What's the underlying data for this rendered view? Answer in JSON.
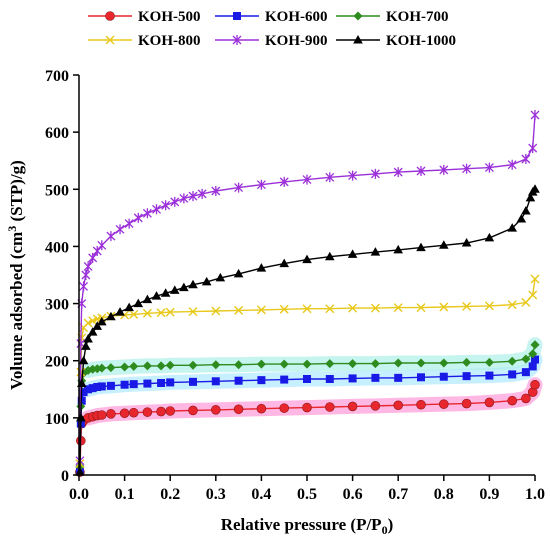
{
  "chart_data": {
    "type": "line",
    "xlabel": "Relative pressure (P/P",
    "xlabel_sub": "0",
    "xlabel_close": ")",
    "ylabel_prefix": "Volume adsorbed (cm",
    "ylabel_sup": "3",
    "ylabel_suffix": " (STP)/g)",
    "xlim": [
      0,
      1.0
    ],
    "ylim": [
      0,
      700
    ],
    "xticks": [
      "0.0",
      "0.1",
      "0.2",
      "0.3",
      "0.4",
      "0.5",
      "0.6",
      "0.7",
      "0.8",
      "0.9",
      "1.0"
    ],
    "yticks": [
      "0",
      "100",
      "200",
      "300",
      "400",
      "500",
      "600",
      "700"
    ],
    "legend_placement": "top",
    "grid": false,
    "series": [
      {
        "name": "KOH-500",
        "color": "#e8262d",
        "marker": "circle",
        "halo": "#ff9ad8",
        "points": [
          [
            0.002,
            5
          ],
          [
            0.004,
            60
          ],
          [
            0.006,
            90
          ],
          [
            0.01,
            95
          ],
          [
            0.02,
            100
          ],
          [
            0.03,
            102
          ],
          [
            0.04,
            104
          ],
          [
            0.05,
            105
          ],
          [
            0.07,
            107
          ],
          [
            0.1,
            108
          ],
          [
            0.12,
            109
          ],
          [
            0.15,
            110
          ],
          [
            0.18,
            111
          ],
          [
            0.2,
            112
          ],
          [
            0.25,
            113
          ],
          [
            0.3,
            114
          ],
          [
            0.35,
            115
          ],
          [
            0.4,
            116
          ],
          [
            0.45,
            117
          ],
          [
            0.5,
            118
          ],
          [
            0.55,
            119
          ],
          [
            0.6,
            120
          ],
          [
            0.65,
            121
          ],
          [
            0.7,
            122
          ],
          [
            0.75,
            123
          ],
          [
            0.8,
            124
          ],
          [
            0.85,
            125
          ],
          [
            0.9,
            127
          ],
          [
            0.95,
            130
          ],
          [
            0.98,
            134
          ],
          [
            0.995,
            145
          ],
          [
            1.0,
            158
          ]
        ]
      },
      {
        "name": "KOH-600",
        "color": "#1a1ae6",
        "marker": "square",
        "halo": "#aee8ff",
        "points": [
          [
            0.002,
            10
          ],
          [
            0.004,
            90
          ],
          [
            0.006,
            130
          ],
          [
            0.01,
            145
          ],
          [
            0.02,
            150
          ],
          [
            0.03,
            152
          ],
          [
            0.04,
            154
          ],
          [
            0.05,
            155
          ],
          [
            0.07,
            156
          ],
          [
            0.1,
            158
          ],
          [
            0.12,
            159
          ],
          [
            0.15,
            160
          ],
          [
            0.18,
            161
          ],
          [
            0.2,
            162
          ],
          [
            0.25,
            163
          ],
          [
            0.3,
            164
          ],
          [
            0.35,
            165
          ],
          [
            0.4,
            166
          ],
          [
            0.45,
            167
          ],
          [
            0.5,
            168
          ],
          [
            0.55,
            168
          ],
          [
            0.6,
            169
          ],
          [
            0.65,
            170
          ],
          [
            0.7,
            170
          ],
          [
            0.75,
            171
          ],
          [
            0.8,
            172
          ],
          [
            0.85,
            173
          ],
          [
            0.9,
            174
          ],
          [
            0.95,
            176
          ],
          [
            0.98,
            180
          ],
          [
            0.995,
            190
          ],
          [
            1.0,
            202
          ]
        ]
      },
      {
        "name": "KOH-700",
        "color": "#2e8b1e",
        "marker": "diamond",
        "halo": "#aef0e8",
        "points": [
          [
            0.002,
            15
          ],
          [
            0.004,
            120
          ],
          [
            0.006,
            165
          ],
          [
            0.01,
            178
          ],
          [
            0.02,
            183
          ],
          [
            0.03,
            185
          ],
          [
            0.04,
            186
          ],
          [
            0.05,
            187
          ],
          [
            0.07,
            188
          ],
          [
            0.1,
            189
          ],
          [
            0.12,
            190
          ],
          [
            0.15,
            191
          ],
          [
            0.18,
            191
          ],
          [
            0.2,
            192
          ],
          [
            0.25,
            192
          ],
          [
            0.3,
            193
          ],
          [
            0.35,
            193
          ],
          [
            0.4,
            194
          ],
          [
            0.45,
            194
          ],
          [
            0.5,
            194
          ],
          [
            0.55,
            195
          ],
          [
            0.6,
            195
          ],
          [
            0.65,
            195
          ],
          [
            0.7,
            196
          ],
          [
            0.75,
            196
          ],
          [
            0.8,
            196
          ],
          [
            0.85,
            197
          ],
          [
            0.9,
            197
          ],
          [
            0.95,
            199
          ],
          [
            0.98,
            203
          ],
          [
            0.995,
            212
          ],
          [
            1.0,
            228
          ]
        ]
      },
      {
        "name": "KOH-800",
        "color": "#e8c81a",
        "marker": "x",
        "halo": "",
        "points": [
          [
            0.002,
            20
          ],
          [
            0.004,
            180
          ],
          [
            0.006,
            240
          ],
          [
            0.01,
            258
          ],
          [
            0.02,
            266
          ],
          [
            0.03,
            270
          ],
          [
            0.04,
            273
          ],
          [
            0.05,
            275
          ],
          [
            0.07,
            278
          ],
          [
            0.1,
            280
          ],
          [
            0.12,
            281
          ],
          [
            0.15,
            283
          ],
          [
            0.18,
            284
          ],
          [
            0.2,
            285
          ],
          [
            0.25,
            286
          ],
          [
            0.3,
            287
          ],
          [
            0.35,
            288
          ],
          [
            0.4,
            289
          ],
          [
            0.45,
            290
          ],
          [
            0.5,
            291
          ],
          [
            0.55,
            291
          ],
          [
            0.6,
            292
          ],
          [
            0.65,
            292
          ],
          [
            0.7,
            293
          ],
          [
            0.75,
            293
          ],
          [
            0.8,
            294
          ],
          [
            0.85,
            295
          ],
          [
            0.9,
            296
          ],
          [
            0.95,
            298
          ],
          [
            0.98,
            302
          ],
          [
            0.995,
            315
          ],
          [
            1.0,
            343
          ]
        ]
      },
      {
        "name": "KOH-900",
        "color": "#9b30d9",
        "marker": "star",
        "halo": "",
        "points": [
          [
            0.002,
            25
          ],
          [
            0.004,
            230
          ],
          [
            0.006,
            300
          ],
          [
            0.01,
            330
          ],
          [
            0.015,
            350
          ],
          [
            0.02,
            365
          ],
          [
            0.03,
            380
          ],
          [
            0.04,
            392
          ],
          [
            0.05,
            402
          ],
          [
            0.07,
            418
          ],
          [
            0.09,
            430
          ],
          [
            0.11,
            440
          ],
          [
            0.13,
            450
          ],
          [
            0.15,
            458
          ],
          [
            0.17,
            465
          ],
          [
            0.19,
            472
          ],
          [
            0.21,
            478
          ],
          [
            0.23,
            484
          ],
          [
            0.25,
            488
          ],
          [
            0.27,
            492
          ],
          [
            0.3,
            497
          ],
          [
            0.35,
            503
          ],
          [
            0.4,
            508
          ],
          [
            0.45,
            513
          ],
          [
            0.5,
            517
          ],
          [
            0.55,
            521
          ],
          [
            0.6,
            524
          ],
          [
            0.65,
            527
          ],
          [
            0.7,
            530
          ],
          [
            0.75,
            532
          ],
          [
            0.8,
            534
          ],
          [
            0.85,
            536
          ],
          [
            0.9,
            538
          ],
          [
            0.95,
            543
          ],
          [
            0.98,
            553
          ],
          [
            0.995,
            572
          ],
          [
            1.0,
            630
          ]
        ]
      },
      {
        "name": "KOH-1000",
        "color": "#000000",
        "marker": "triangle",
        "halo": "",
        "points": [
          [
            0.002,
            5
          ],
          [
            0.004,
            100
          ],
          [
            0.006,
            160
          ],
          [
            0.01,
            200
          ],
          [
            0.015,
            225
          ],
          [
            0.02,
            238
          ],
          [
            0.03,
            250
          ],
          [
            0.04,
            260
          ],
          [
            0.05,
            268
          ],
          [
            0.07,
            277
          ],
          [
            0.09,
            285
          ],
          [
            0.11,
            293
          ],
          [
            0.13,
            300
          ],
          [
            0.15,
            307
          ],
          [
            0.17,
            313
          ],
          [
            0.19,
            318
          ],
          [
            0.21,
            323
          ],
          [
            0.23,
            328
          ],
          [
            0.25,
            333
          ],
          [
            0.28,
            338
          ],
          [
            0.31,
            345
          ],
          [
            0.35,
            352
          ],
          [
            0.4,
            362
          ],
          [
            0.45,
            370
          ],
          [
            0.5,
            377
          ],
          [
            0.55,
            382
          ],
          [
            0.6,
            386
          ],
          [
            0.65,
            390
          ],
          [
            0.7,
            394
          ],
          [
            0.75,
            398
          ],
          [
            0.8,
            402
          ],
          [
            0.85,
            406
          ],
          [
            0.9,
            415
          ],
          [
            0.95,
            432
          ],
          [
            0.97,
            448
          ],
          [
            0.98,
            462
          ],
          [
            0.99,
            485
          ],
          [
            0.995,
            495
          ],
          [
            1.0,
            500
          ]
        ]
      }
    ]
  }
}
